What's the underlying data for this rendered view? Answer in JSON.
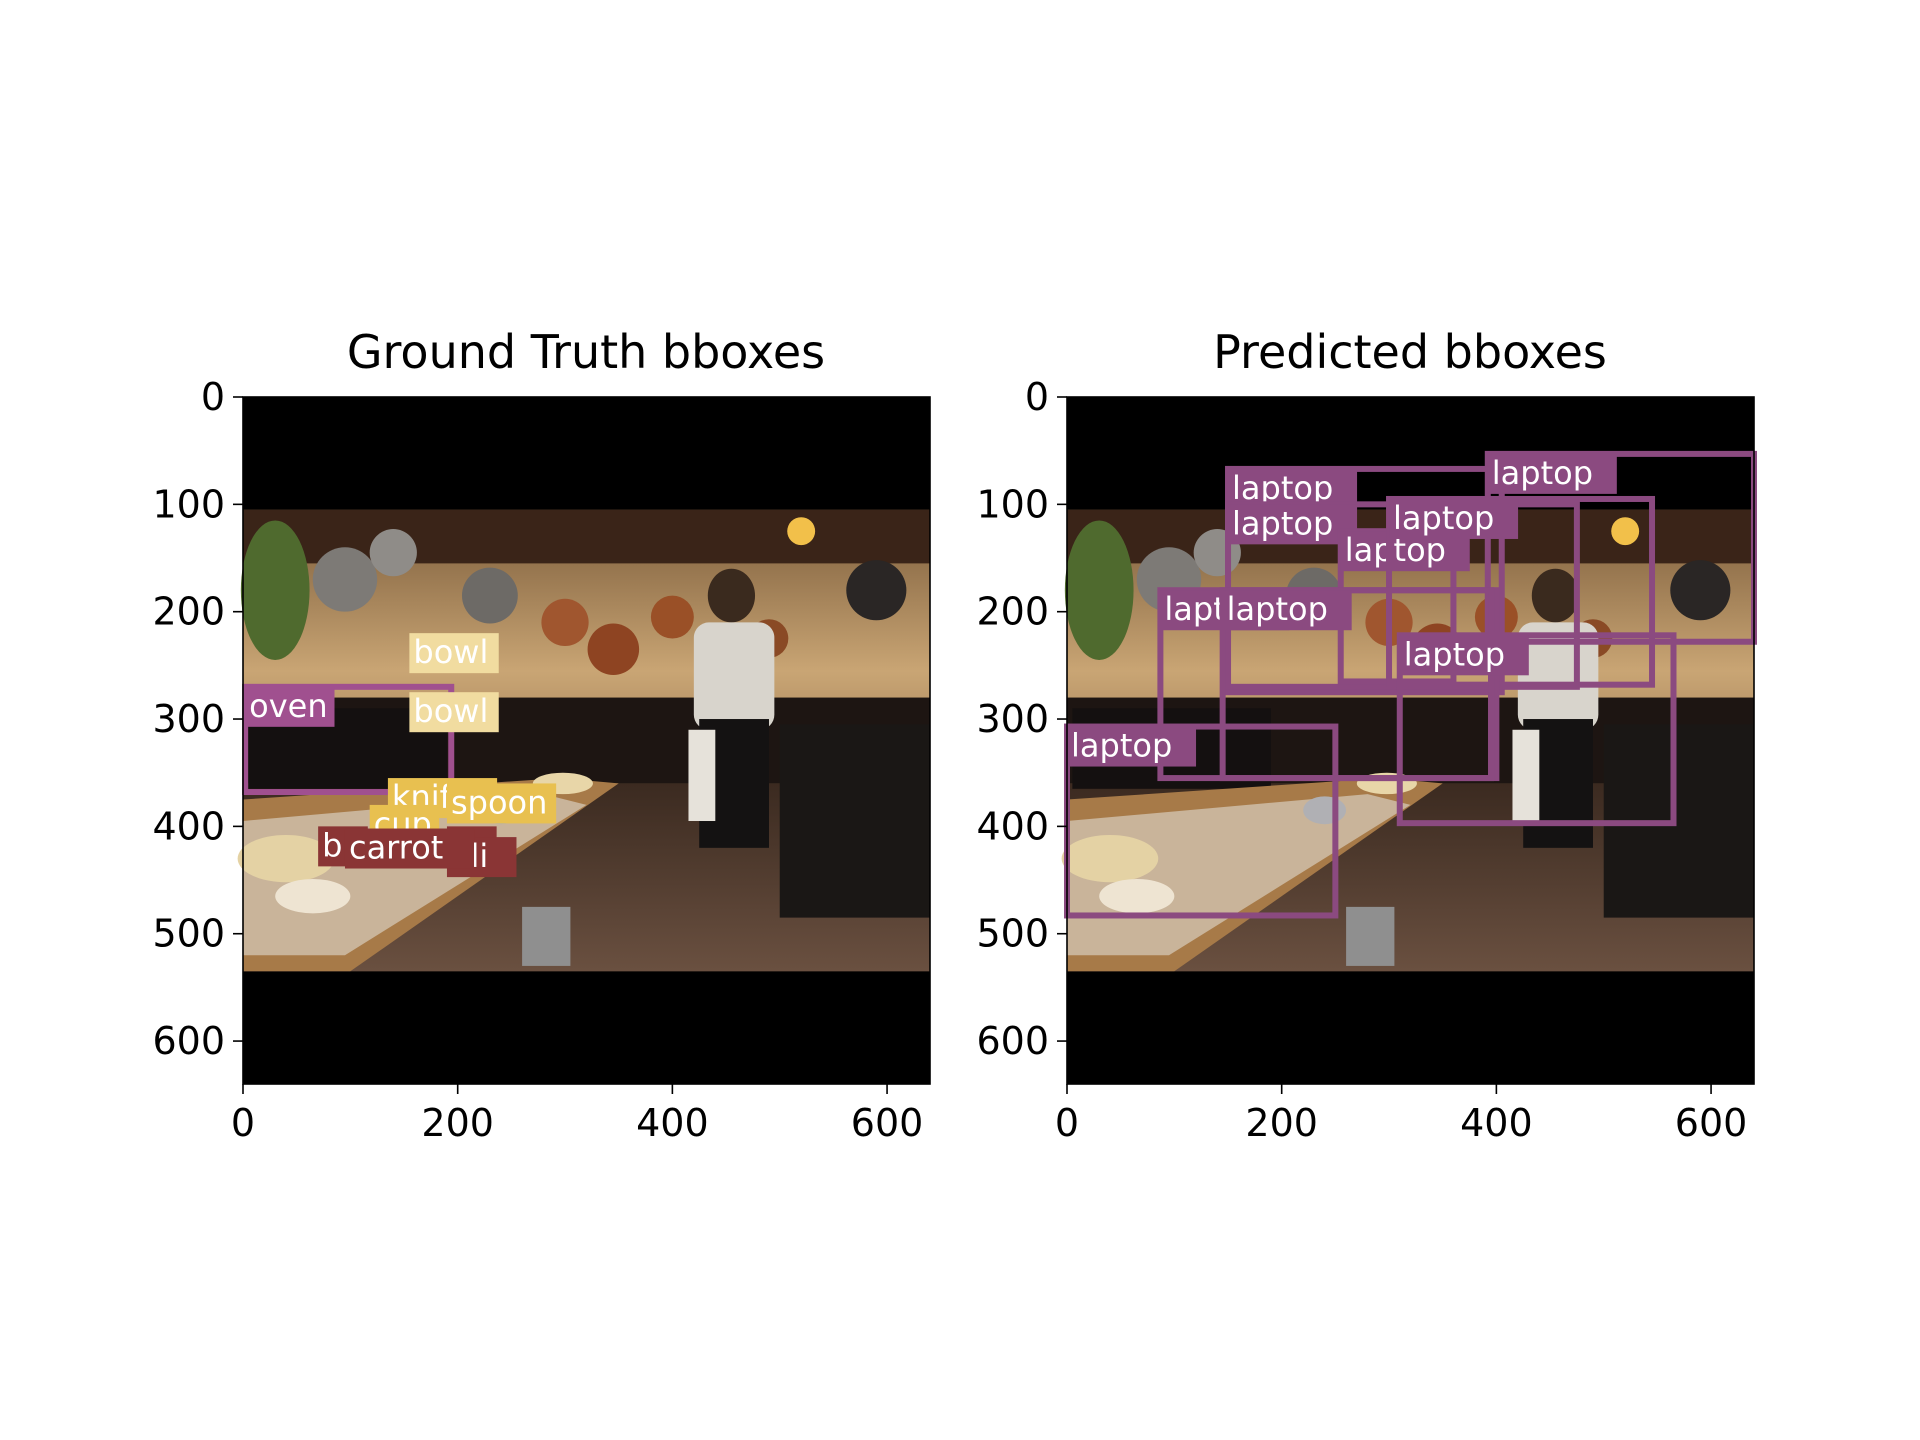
{
  "chart_data": [
    {
      "type": "scatter",
      "subtype": "image-with-bounding-boxes",
      "title": "Ground Truth bboxes",
      "xlim": [
        0,
        640
      ],
      "ylim": [
        640,
        0
      ],
      "xticks": [
        0,
        200,
        400,
        600
      ],
      "yticks": [
        0,
        100,
        200,
        300,
        400,
        500,
        600
      ],
      "image_content_extent_y": [
        105,
        535
      ],
      "boxes": [
        {
          "label": "oven",
          "color": "#a0508f",
          "x0": 2,
          "y0": 270,
          "x1": 194,
          "y1": 368
        },
        {
          "label": "bowl",
          "color": "#f1dca0",
          "x0": 155,
          "y0": 220,
          "x1": 235,
          "y1": 250
        },
        {
          "label": "bowl",
          "color": "#f1dca0",
          "x0": 155,
          "y0": 275,
          "x1": 235,
          "y1": 305
        },
        {
          "label": "knife",
          "color": "#e8c050",
          "x0": 135,
          "y0": 355,
          "x1": 215,
          "y1": 385
        },
        {
          "label": "spoon",
          "color": "#e8c050",
          "x0": 190,
          "y0": 360,
          "x1": 268,
          "y1": 390
        },
        {
          "label": "cup",
          "color": "#e8c050",
          "x0": 118,
          "y0": 380,
          "x1": 185,
          "y1": 405
        },
        {
          "label": "bi",
          "color": "#8a3535",
          "x0": 70,
          "y0": 400,
          "x1": 110,
          "y1": 430
        },
        {
          "label": "li",
          "color": "#8a3535",
          "x0": 190,
          "y0": 400,
          "x1": 230,
          "y1": 425
        },
        {
          "label": "oli",
          "color": "#8a3535",
          "x0": 190,
          "y0": 410,
          "x1": 230,
          "y1": 440
        },
        {
          "label": "carrot",
          "color": "#8a3535",
          "x0": 95,
          "y0": 402,
          "x1": 205,
          "y1": 432
        }
      ]
    },
    {
      "type": "scatter",
      "subtype": "image-with-bounding-boxes",
      "title": "Predicted bboxes",
      "xlim": [
        0,
        640
      ],
      "ylim": [
        640,
        0
      ],
      "xticks": [
        0,
        200,
        400,
        600
      ],
      "yticks": [
        0,
        100,
        200,
        300,
        400,
        500,
        600
      ],
      "image_content_extent_y": [
        105,
        535
      ],
      "boxes": [
        {
          "label": "laptop",
          "color": "#8b4a80",
          "x0": 150,
          "y0": 67,
          "x1": 405,
          "y1": 275
        },
        {
          "label": "laptop",
          "color": "#8b4a80",
          "x0": 392,
          "y0": 53,
          "x1": 640,
          "y1": 228
        },
        {
          "label": "laptop",
          "color": "#8b4a80",
          "x0": 150,
          "y0": 100,
          "x1": 475,
          "y1": 270
        },
        {
          "label": "laptop",
          "color": "#8b4a80",
          "x0": 255,
          "y0": 125,
          "x1": 360,
          "y1": 265
        },
        {
          "label": "laptop",
          "color": "#8b4a80",
          "x0": 300,
          "y0": 95,
          "x1": 545,
          "y1": 268
        },
        {
          "label": "laptop",
          "color": "#8b4a80",
          "x0": 87,
          "y0": 180,
          "x1": 400,
          "y1": 355
        },
        {
          "label": "laptop",
          "color": "#8b4a80",
          "x0": 145,
          "y0": 180,
          "x1": 395,
          "y1": 355
        },
        {
          "label": "laptop",
          "color": "#8b4a80",
          "x0": 310,
          "y0": 222,
          "x1": 565,
          "y1": 397
        },
        {
          "label": "laptop",
          "color": "#8b4a80",
          "x0": 0,
          "y0": 307,
          "x1": 250,
          "y1": 483
        }
      ]
    }
  ]
}
